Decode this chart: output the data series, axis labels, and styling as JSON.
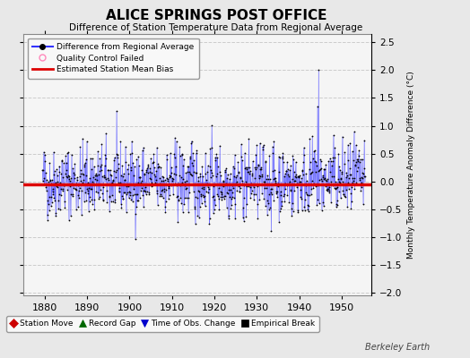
{
  "title": "ALICE SPRINGS POST OFFICE",
  "subtitle": "Difference of Station Temperature Data from Regional Average",
  "ylabel": "Monthly Temperature Anomaly Difference (°C)",
  "xlabel_ticks": [
    1880,
    1890,
    1900,
    1910,
    1920,
    1930,
    1940,
    1950
  ],
  "yticks": [
    -2,
    -1.5,
    -1,
    -0.5,
    0,
    0.5,
    1,
    1.5,
    2,
    2.5
  ],
  "xlim": [
    1875.0,
    1957.0
  ],
  "ylim": [
    -2.05,
    2.65
  ],
  "bias_line_y": -0.05,
  "bias_line_color": "#dd0000",
  "series_color": "#3333ff",
  "series_color_light": "#aaaaff",
  "dot_color": "#000000",
  "qc_color": "#ff88bb",
  "background_color": "#e8e8e8",
  "plot_bg_color": "#f5f5f5",
  "grid_color": "#cccccc",
  "seed": 42,
  "n_months": 912,
  "start_year": 1879.5,
  "watermark": "Berkeley Earth",
  "legend1_labels": [
    "Difference from Regional Average",
    "Quality Control Failed",
    "Estimated Station Mean Bias"
  ],
  "legend2_labels": [
    "Station Move",
    "Record Gap",
    "Time of Obs. Change",
    "Empirical Break"
  ],
  "legend2_colors": [
    "#cc0000",
    "#006600",
    "#0000cc",
    "#000000"
  ],
  "legend2_markers": [
    "D",
    "^",
    "v",
    "s"
  ]
}
